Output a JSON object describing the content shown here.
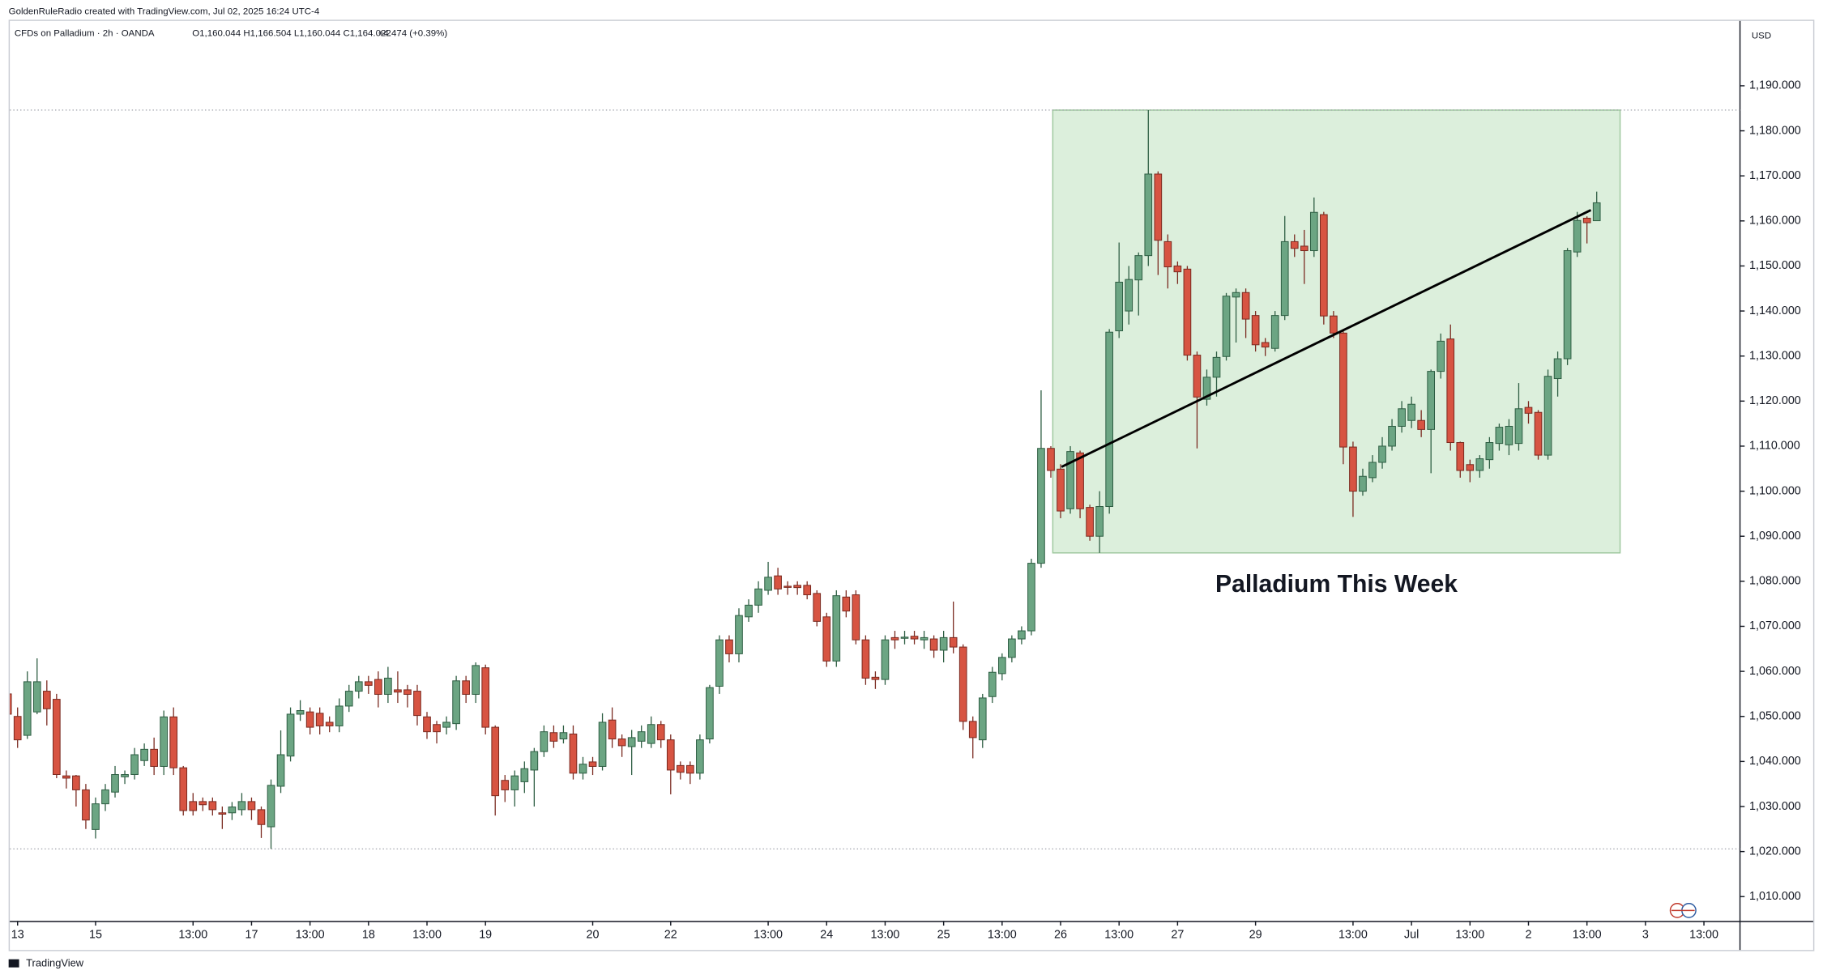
{
  "header": {
    "credit": "GoldenRuleRadio created with TradingView.com, Jul 02, 2025 16:24 UTC-4",
    "footer": "TradingView"
  },
  "chart_data": {
    "type": "candlestick",
    "title": "Palladium This Week",
    "symbol": "CFDs on Palladium · 2h · OANDA",
    "ohlc": "O1,160.044 H1,166.504 L1,160.044 C1,164.022",
    "change": "+4.474 (+0.39%)",
    "currency": "USD",
    "up_color": "#6ca583",
    "down_color": "#d75442",
    "xlim": [
      0.2,
      177.7
    ],
    "ylim": [
      1004.6,
      1204.4
    ],
    "yticks": [
      {
        "value": 1010,
        "label": "1,010.000"
      },
      {
        "value": 1020,
        "label": "1,020.000"
      },
      {
        "value": 1030,
        "label": "1,030.000"
      },
      {
        "value": 1040,
        "label": "1,040.000"
      },
      {
        "value": 1050,
        "label": "1,050.000"
      },
      {
        "value": 1060,
        "label": "1,060.000"
      },
      {
        "value": 1070,
        "label": "1,070.000"
      },
      {
        "value": 1080,
        "label": "1,080.000"
      },
      {
        "value": 1090,
        "label": "1,090.000"
      },
      {
        "value": 1100,
        "label": "1,100.000"
      },
      {
        "value": 1110,
        "label": "1,110.000"
      },
      {
        "value": 1120,
        "label": "1,120.000"
      },
      {
        "value": 1130,
        "label": "1,130.000"
      },
      {
        "value": 1140,
        "label": "1,140.000"
      },
      {
        "value": 1150,
        "label": "1,150.000"
      },
      {
        "value": 1160,
        "label": "1,160.000"
      },
      {
        "value": 1170,
        "label": "1,170.000"
      },
      {
        "value": 1180,
        "label": "1,180.000"
      },
      {
        "value": 1190,
        "label": "1,190.000"
      }
    ],
    "xticks": [
      {
        "value": 1,
        "label": "13"
      },
      {
        "value": 9,
        "label": "15"
      },
      {
        "value": 19,
        "label": "13:00"
      },
      {
        "value": 25,
        "label": "17"
      },
      {
        "value": 31,
        "label": "13:00"
      },
      {
        "value": 37,
        "label": "18"
      },
      {
        "value": 43,
        "label": "13:00"
      },
      {
        "value": 49,
        "label": "19"
      },
      {
        "value": 60,
        "label": "20"
      },
      {
        "value": 68,
        "label": "22"
      },
      {
        "value": 78,
        "label": "13:00"
      },
      {
        "value": 84,
        "label": "24"
      },
      {
        "value": 90,
        "label": "13:00"
      },
      {
        "value": 96,
        "label": "25"
      },
      {
        "value": 102,
        "label": "13:00"
      },
      {
        "value": 108,
        "label": "26"
      },
      {
        "value": 114,
        "label": "13:00"
      },
      {
        "value": 120,
        "label": "27"
      },
      {
        "value": 128,
        "label": "29"
      },
      {
        "value": 138,
        "label": "13:00"
      },
      {
        "value": 144,
        "label": "Jul"
      },
      {
        "value": 150,
        "label": "13:00"
      },
      {
        "value": 156,
        "label": "2"
      },
      {
        "value": 162,
        "label": "13:00"
      },
      {
        "value": 168,
        "label": "3"
      },
      {
        "value": 174,
        "label": "13:00"
      }
    ],
    "box": {
      "x": [
        107.2,
        165.4
      ],
      "y": [
        1086.3,
        1184.6
      ],
      "color": "#dcefdc"
    },
    "trendline": {
      "x": [
        108.1,
        162.4
      ],
      "y": [
        1105.4,
        1162.4
      ],
      "color": "#000000"
    },
    "candles": [
      [
        1055,
        1057,
        1045,
        1050.5
      ],
      [
        1050,
        1052,
        1043,
        1044.8
      ],
      [
        1045.8,
        1060,
        1045,
        1057.7
      ],
      [
        1051,
        1062.9,
        1050.5,
        1057.7
      ],
      [
        1055.6,
        1058,
        1048,
        1051.7
      ],
      [
        1053.8,
        1055,
        1036.3,
        1037.1
      ],
      [
        1036.8,
        1038,
        1034,
        1036.3
      ],
      [
        1036.8,
        1037,
        1030,
        1033.7
      ],
      [
        1033.7,
        1035,
        1025,
        1027
      ],
      [
        1024.9,
        1032,
        1022.9,
        1030.6
      ],
      [
        1030.6,
        1035,
        1029,
        1033.7
      ],
      [
        1033.2,
        1039,
        1032,
        1037.1
      ],
      [
        1036.6,
        1038,
        1035,
        1037.1
      ],
      [
        1037.1,
        1043,
        1036,
        1041.5
      ],
      [
        1040.2,
        1044,
        1039,
        1042.7
      ],
      [
        1042.7,
        1045.3,
        1037,
        1038.9
      ],
      [
        1038.9,
        1051.3,
        1037,
        1049.9
      ],
      [
        1049.9,
        1052,
        1037,
        1038.6
      ],
      [
        1038.6,
        1039,
        1028,
        1029.1
      ],
      [
        1031.1,
        1033,
        1028,
        1029.1
      ],
      [
        1031.1,
        1032,
        1029,
        1030.4
      ],
      [
        1031.1,
        1032,
        1028,
        1029.3
      ],
      [
        1028.6,
        1030,
        1025,
        1028.3
      ],
      [
        1028.6,
        1031,
        1027,
        1029.9
      ],
      [
        1029.3,
        1033,
        1028,
        1031.1
      ],
      [
        1031.1,
        1032,
        1027,
        1029.3
      ],
      [
        1029.3,
        1030,
        1023,
        1026
      ],
      [
        1025.5,
        1036,
        1020.6,
        1034.7
      ],
      [
        1034.5,
        1046.9,
        1033,
        1041.5
      ],
      [
        1041.2,
        1052,
        1040,
        1050.5
      ],
      [
        1050.5,
        1053.6,
        1049,
        1051.3
      ],
      [
        1051,
        1052,
        1046,
        1047.6
      ],
      [
        1050.7,
        1052,
        1046,
        1047.9
      ],
      [
        1048.7,
        1050,
        1046.5,
        1047.9
      ],
      [
        1047.9,
        1054,
        1046.5,
        1052.3
      ],
      [
        1052.3,
        1057,
        1051,
        1055.6
      ],
      [
        1055.6,
        1059,
        1054,
        1057.7
      ],
      [
        1057.7,
        1059,
        1055,
        1056.9
      ],
      [
        1058.2,
        1060,
        1052,
        1054.9
      ],
      [
        1054.9,
        1061,
        1053,
        1058.5
      ],
      [
        1055.9,
        1060,
        1053,
        1055.4
      ],
      [
        1055.9,
        1057,
        1052,
        1054.9
      ],
      [
        1055.6,
        1057,
        1048,
        1050.2
      ],
      [
        1049.9,
        1051,
        1045,
        1046.6
      ],
      [
        1048.2,
        1049,
        1044,
        1046.6
      ],
      [
        1047.6,
        1050,
        1046,
        1048.7
      ],
      [
        1048.4,
        1059,
        1047,
        1057.9
      ],
      [
        1057.9,
        1059,
        1053,
        1054.9
      ],
      [
        1054.9,
        1062,
        1053,
        1061.3
      ],
      [
        1060.8,
        1061.5,
        1046,
        1047.6
      ],
      [
        1047.6,
        1048,
        1028,
        1032.4
      ],
      [
        1035.8,
        1037,
        1031,
        1033.7
      ],
      [
        1033.7,
        1038,
        1030,
        1036.8
      ],
      [
        1035.5,
        1040,
        1033,
        1038.4
      ],
      [
        1038.1,
        1043,
        1030,
        1042.2
      ],
      [
        1042.2,
        1048,
        1041,
        1046.6
      ],
      [
        1046.4,
        1048,
        1043,
        1044.5
      ],
      [
        1045,
        1048,
        1044,
        1046.4
      ],
      [
        1046.1,
        1048,
        1036,
        1037.4
      ],
      [
        1037.4,
        1041,
        1036,
        1039.4
      ],
      [
        1039.9,
        1041,
        1037,
        1038.9
      ],
      [
        1038.9,
        1050.7,
        1038,
        1048.7
      ],
      [
        1049.2,
        1052,
        1043,
        1045
      ],
      [
        1045,
        1046,
        1041,
        1043.5
      ],
      [
        1043.3,
        1047,
        1037,
        1045.3
      ],
      [
        1044.5,
        1048,
        1043,
        1046.6
      ],
      [
        1044,
        1050,
        1043,
        1048.2
      ],
      [
        1048.2,
        1049,
        1043,
        1044.8
      ],
      [
        1044.8,
        1046,
        1032.7,
        1038.1
      ],
      [
        1039.1,
        1040,
        1036,
        1037.6
      ],
      [
        1039.1,
        1040,
        1035,
        1037.4
      ],
      [
        1037.4,
        1046,
        1036,
        1044.8
      ],
      [
        1045,
        1057,
        1044,
        1056.4
      ],
      [
        1056.7,
        1068,
        1055,
        1067
      ],
      [
        1067,
        1068,
        1062,
        1063.9
      ],
      [
        1063.9,
        1074,
        1062,
        1072.4
      ],
      [
        1072.1,
        1076,
        1071,
        1074.7
      ],
      [
        1074.7,
        1080,
        1073,
        1078.3
      ],
      [
        1078,
        1084.3,
        1077,
        1080.9
      ],
      [
        1081.2,
        1083,
        1077,
        1078.3
      ],
      [
        1078.9,
        1080,
        1077,
        1078.8
      ],
      [
        1079.1,
        1080,
        1077,
        1078.6
      ],
      [
        1079.1,
        1080,
        1076,
        1077
      ],
      [
        1077.3,
        1078,
        1070,
        1071.1
      ],
      [
        1072.1,
        1073,
        1061,
        1062.3
      ],
      [
        1062.3,
        1078,
        1061,
        1076.8
      ],
      [
        1076.5,
        1078,
        1072,
        1073.4
      ],
      [
        1077,
        1078,
        1066,
        1067
      ],
      [
        1067,
        1068,
        1057,
        1058.5
      ],
      [
        1058.7,
        1060,
        1056.1,
        1058.2
      ],
      [
        1058.2,
        1068,
        1057,
        1067
      ],
      [
        1067.5,
        1069,
        1065,
        1067
      ],
      [
        1067.5,
        1069,
        1066,
        1067.6
      ],
      [
        1067.8,
        1069,
        1066,
        1067.2
      ],
      [
        1067,
        1069,
        1065,
        1067.5
      ],
      [
        1067.2,
        1068,
        1063,
        1064.7
      ],
      [
        1064.7,
        1069,
        1062,
        1067.5
      ],
      [
        1067.5,
        1075.5,
        1064,
        1065.4
      ],
      [
        1065.4,
        1066,
        1047,
        1048.9
      ],
      [
        1048.9,
        1050,
        1040.7,
        1045.3
      ],
      [
        1044.8,
        1055,
        1043,
        1054.1
      ],
      [
        1054.4,
        1061,
        1053,
        1059.8
      ],
      [
        1059.5,
        1064,
        1058,
        1063.1
      ],
      [
        1063.1,
        1068,
        1062,
        1067.2
      ],
      [
        1067.2,
        1070,
        1066,
        1069
      ],
      [
        1069,
        1085,
        1068,
        1084
      ],
      [
        1084,
        1122.4,
        1083,
        1109.5
      ],
      [
        1109.5,
        1110,
        1103,
        1104.6
      ],
      [
        1104.9,
        1106,
        1094,
        1095.6
      ],
      [
        1096.1,
        1110,
        1095,
        1108.8
      ],
      [
        1108.5,
        1109,
        1094,
        1096.1
      ],
      [
        1096.4,
        1097,
        1089,
        1090
      ],
      [
        1090,
        1100,
        1086.3,
        1096.6
      ],
      [
        1096.6,
        1136,
        1095,
        1135.3
      ],
      [
        1135.6,
        1155.2,
        1134,
        1146.4
      ],
      [
        1140,
        1150,
        1137,
        1147
      ],
      [
        1146.9,
        1153,
        1139,
        1152.3
      ],
      [
        1152.3,
        1184.6,
        1150,
        1170.4
      ],
      [
        1170.4,
        1171,
        1148,
        1155.7
      ],
      [
        1155.4,
        1157,
        1145,
        1149.8
      ],
      [
        1150,
        1151,
        1146,
        1148.7
      ],
      [
        1149.3,
        1150,
        1129,
        1130.2
      ],
      [
        1130.2,
        1131,
        1109.5,
        1120.9
      ],
      [
        1120.4,
        1127,
        1119,
        1125.3
      ],
      [
        1125.3,
        1131,
        1121,
        1129.7
      ],
      [
        1129.9,
        1144,
        1129,
        1143.3
      ],
      [
        1143.1,
        1145,
        1133,
        1144.1
      ],
      [
        1144.1,
        1145,
        1134,
        1138.2
      ],
      [
        1139,
        1140,
        1131,
        1132.5
      ],
      [
        1133,
        1134,
        1130,
        1132
      ],
      [
        1131.7,
        1140,
        1131,
        1139
      ],
      [
        1139,
        1161.1,
        1138,
        1155.4
      ],
      [
        1155.4,
        1157,
        1152,
        1153.9
      ],
      [
        1154.4,
        1158,
        1146,
        1153.4
      ],
      [
        1153.4,
        1165.2,
        1152,
        1161.9
      ],
      [
        1161.4,
        1162,
        1137,
        1138.9
      ],
      [
        1138.9,
        1140,
        1134,
        1135.1
      ],
      [
        1135.1,
        1136,
        1106,
        1109.8
      ],
      [
        1109.8,
        1111,
        1094.3,
        1100
      ],
      [
        1100,
        1105,
        1099,
        1103.3
      ],
      [
        1103,
        1108,
        1102,
        1106.4
      ],
      [
        1106.4,
        1112,
        1105,
        1110
      ],
      [
        1110,
        1116,
        1109,
        1114.4
      ],
      [
        1114.4,
        1120,
        1113,
        1118.3
      ],
      [
        1115.7,
        1121,
        1114,
        1119.3
      ],
      [
        1115.7,
        1118,
        1112,
        1113.7
      ],
      [
        1113.7,
        1127,
        1104,
        1126.6
      ],
      [
        1126.6,
        1135,
        1125,
        1133.3
      ],
      [
        1133.8,
        1137,
        1109,
        1110.8
      ],
      [
        1110.8,
        1111,
        1103,
        1104.6
      ],
      [
        1105.9,
        1107,
        1102,
        1104.6
      ],
      [
        1104.6,
        1108,
        1103,
        1107.2
      ],
      [
        1107,
        1112,
        1105,
        1110.8
      ],
      [
        1110.6,
        1115,
        1109,
        1114.2
      ],
      [
        1110.3,
        1116,
        1108,
        1114.4
      ],
      [
        1110.6,
        1124,
        1109,
        1118.3
      ],
      [
        1118.6,
        1120,
        1115,
        1117.3
      ],
      [
        1117.5,
        1118,
        1107,
        1108
      ],
      [
        1108,
        1127,
        1107,
        1125.5
      ],
      [
        1125,
        1131,
        1121,
        1129.4
      ],
      [
        1129.4,
        1154,
        1128,
        1153.4
      ],
      [
        1153.1,
        1162,
        1152,
        1160.1
      ],
      [
        1160.6,
        1161,
        1155,
        1159.6
      ],
      [
        1160.044,
        1166.504,
        1160.044,
        1164.022
      ]
    ]
  }
}
